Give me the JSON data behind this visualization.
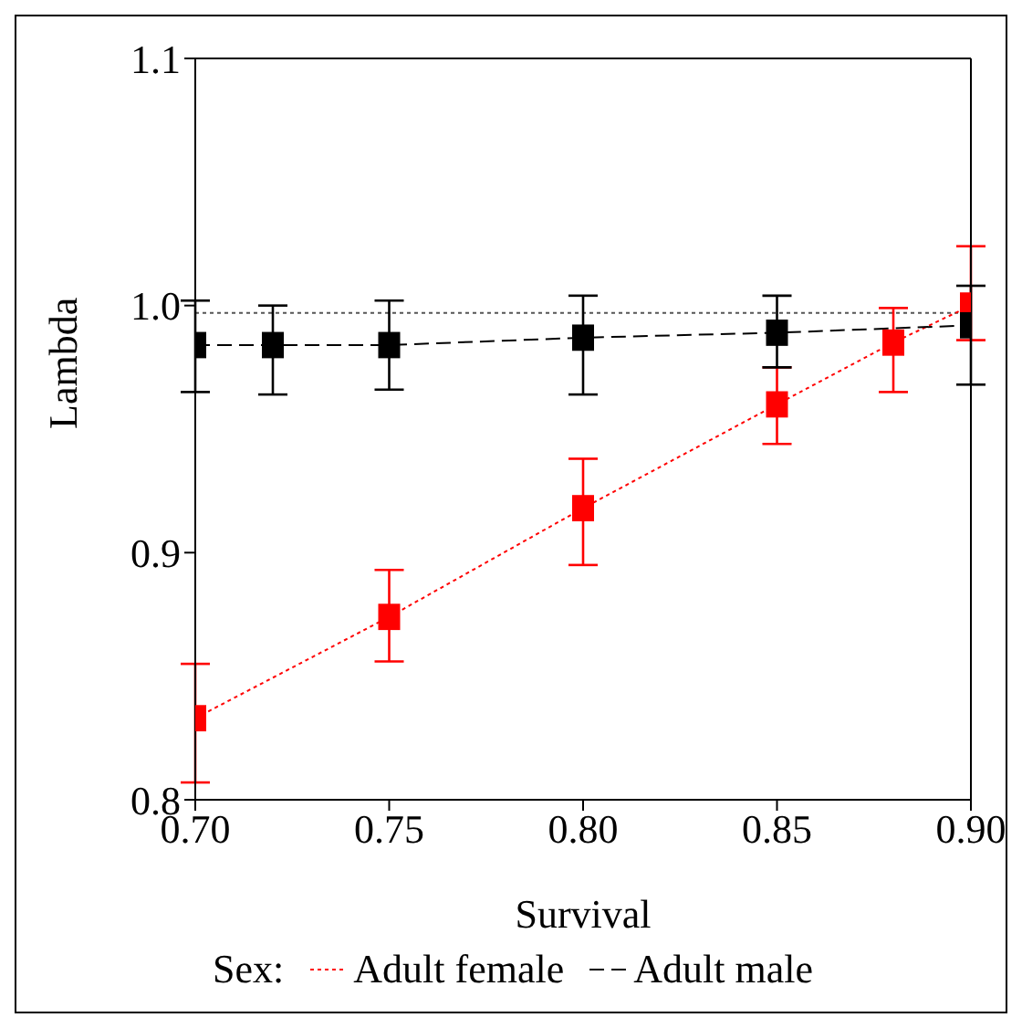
{
  "chart_data": {
    "type": "line",
    "xlabel": "Survival",
    "ylabel": "Lambda",
    "legend_title": "Sex:",
    "legend": "bottom",
    "marker": "square",
    "grid": false,
    "xlim": [
      0.7,
      0.9
    ],
    "xticks": [
      {
        "value": 0.7,
        "label": "0.70"
      },
      {
        "value": 0.75,
        "label": "0.75"
      },
      {
        "value": 0.8,
        "label": "0.80"
      },
      {
        "value": 0.85,
        "label": "0.85"
      },
      {
        "value": 0.9,
        "label": "0.90"
      }
    ],
    "ylim": [
      0.8,
      1.1
    ],
    "yticks": [
      {
        "value": 0.8,
        "label": "0.8"
      },
      {
        "value": 0.9,
        "label": "0.9"
      },
      {
        "value": 1.0,
        "label": "1.0"
      },
      {
        "value": 1.1,
        "label": "1.1"
      }
    ],
    "ref_lines": [
      {
        "axis": "y",
        "value": 0.997,
        "color": "#555555",
        "line_style": "dotted"
      }
    ],
    "series": [
      {
        "name": "Adult female",
        "color": "#ff0000",
        "line_style": "dotted",
        "x": [
          0.7,
          0.75,
          0.8,
          0.85,
          0.88,
          0.9
        ],
        "values": [
          0.833,
          0.874,
          0.918,
          0.96,
          0.985,
          1.0
        ],
        "errors": [
          [
            0.807,
            0.855
          ],
          [
            0.856,
            0.893
          ],
          [
            0.895,
            0.938
          ],
          [
            0.944,
            0.975
          ],
          [
            0.965,
            0.999
          ],
          [
            0.986,
            1.024
          ]
        ]
      },
      {
        "name": "Adult male",
        "color": "#000000",
        "line_style": "dashed",
        "x": [
          0.7,
          0.72,
          0.75,
          0.8,
          0.85,
          0.9
        ],
        "values": [
          0.984,
          0.984,
          0.984,
          0.987,
          0.989,
          0.992
        ],
        "errors": [
          [
            0.965,
            1.002
          ],
          [
            0.964,
            1.0
          ],
          [
            0.966,
            1.002
          ],
          [
            0.964,
            1.004
          ],
          [
            0.975,
            1.004
          ],
          [
            0.968,
            1.008
          ]
        ]
      }
    ]
  }
}
